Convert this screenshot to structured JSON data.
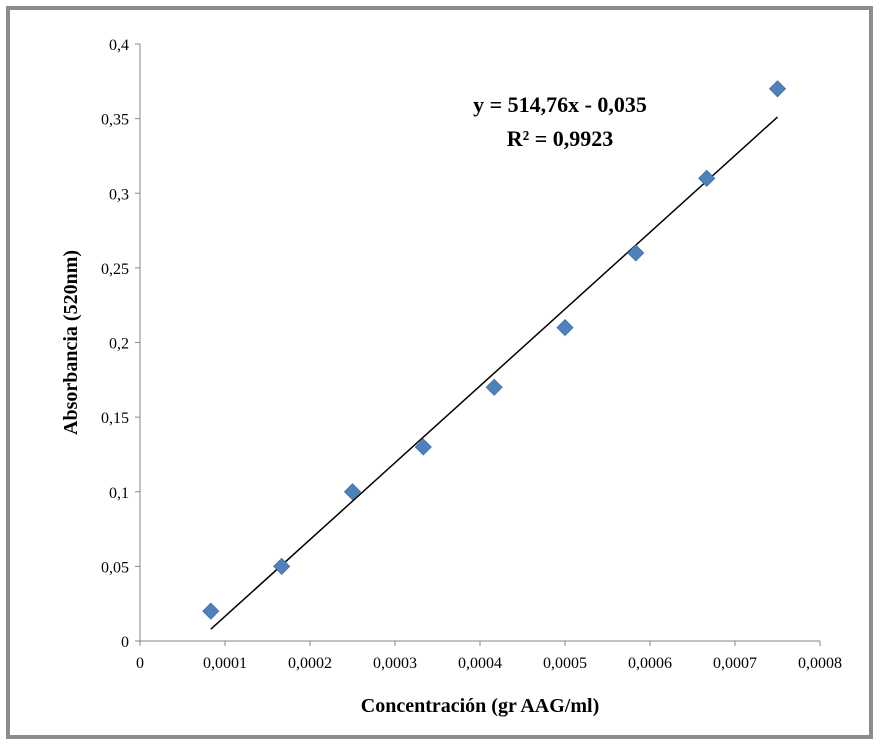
{
  "chart_data": {
    "type": "scatter",
    "xlabel": "Concentración (gr AAG/ml)",
    "ylabel": "Absorbancia (520nm)",
    "xlim": [
      0,
      0.0008
    ],
    "ylim": [
      0,
      0.4
    ],
    "x_ticks": [
      "0",
      "0,0001",
      "0,0002",
      "0,0003",
      "0,0004",
      "0,0005",
      "0,0006",
      "0,0007",
      "0,0008"
    ],
    "y_ticks": [
      "0",
      "0,05",
      "0,1",
      "0,15",
      "0,2",
      "0,25",
      "0,3",
      "0,35",
      "0,4"
    ],
    "grid": false,
    "series": [
      {
        "marker": "diamond",
        "color": "#4f81bd",
        "x": [
          8.33e-05,
          0.0001667,
          0.00025,
          0.0003333,
          0.0004167,
          0.0005,
          0.0005833,
          0.0006667,
          0.00075
        ],
        "y": [
          0.02,
          0.05,
          0.1,
          0.13,
          0.17,
          0.21,
          0.26,
          0.31,
          0.37
        ]
      }
    ],
    "trendline": {
      "type": "linear",
      "slope": 514.76,
      "intercept": -0.035,
      "x_range": [
        8.33e-05,
        0.00075
      ],
      "color": "#000000",
      "equation": "y = 514,76x - 0,035",
      "r_squared": "R² = 0,9923"
    }
  }
}
